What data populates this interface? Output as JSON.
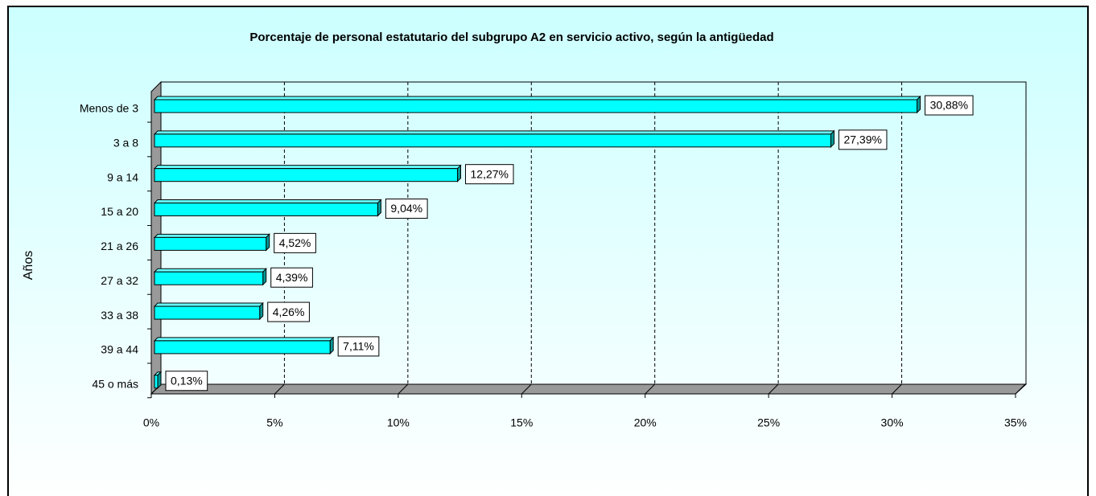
{
  "chart_data": {
    "type": "bar",
    "orientation": "horizontal",
    "title": "Porcentaje de personal estatutario del subgrupo A2 en servicio activo, según la antigüedad",
    "y_label": "Años",
    "categories": [
      "Menos de 3",
      "3 a 8",
      "9 a 14",
      "15 a 20",
      "21 a 26",
      "27 a 32",
      "33 a 38",
      "39 a 44",
      "45 o más"
    ],
    "values": [
      30.88,
      27.39,
      12.27,
      9.04,
      4.52,
      4.39,
      4.26,
      7.11,
      0.13
    ],
    "value_labels": [
      "30,88%",
      "27,39%",
      "12,27%",
      "9,04%",
      "4,52%",
      "4,39%",
      "4,26%",
      "7,11%",
      "0,13%"
    ],
    "color": "#00ffff",
    "xlim": [
      0,
      35
    ],
    "xticks": [
      {
        "value": 0,
        "label": "0%"
      },
      {
        "value": 5,
        "label": "5%"
      },
      {
        "value": 10,
        "label": "10%"
      },
      {
        "value": 15,
        "label": "15%"
      },
      {
        "value": 20,
        "label": "20%"
      },
      {
        "value": 25,
        "label": "25%"
      },
      {
        "value": 30,
        "label": "30%"
      },
      {
        "value": 35,
        "label": "35%"
      }
    ],
    "grid": true
  }
}
